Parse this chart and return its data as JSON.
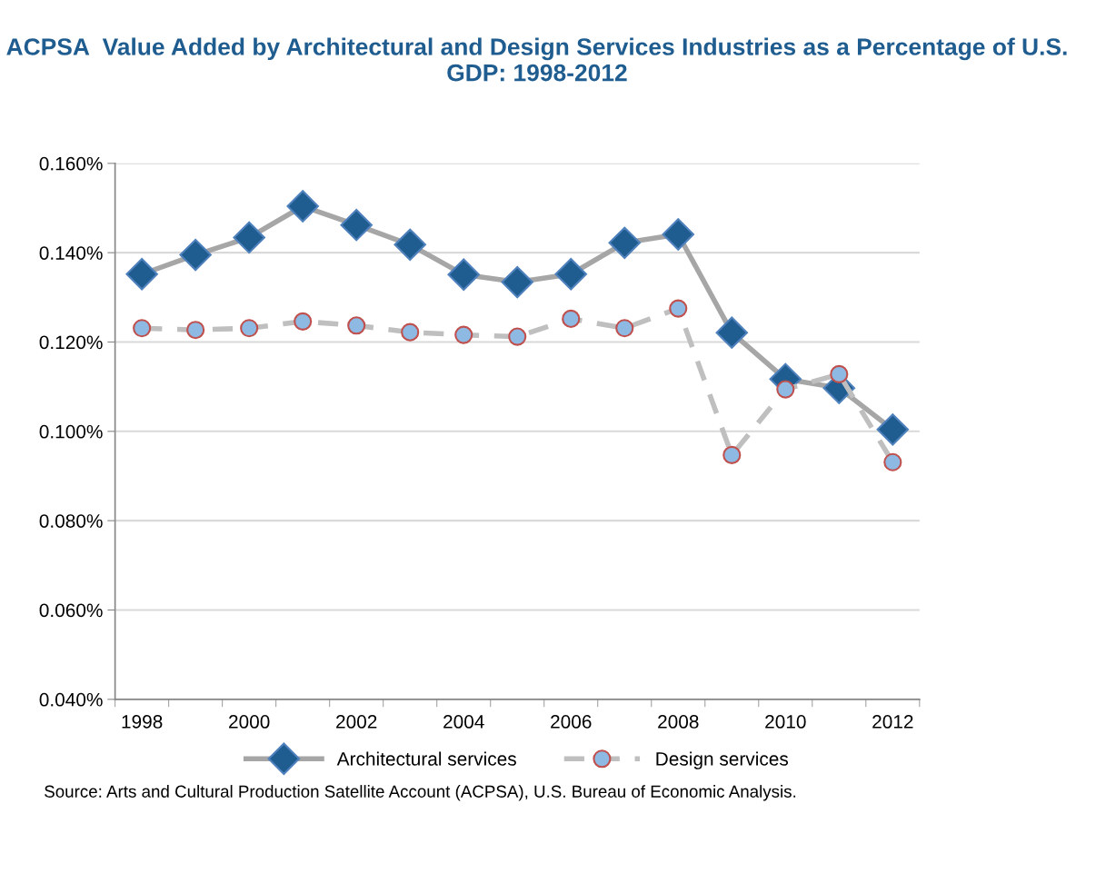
{
  "chart_data": {
    "type": "line",
    "title": "ACPSA  Value Added by Architectural and Design Services Industries as a Percentage of U.S. GDP: 1998-2012",
    "categories": [
      "1998",
      null,
      "2000",
      null,
      "2002",
      null,
      "2004",
      null,
      "2006",
      null,
      "2008",
      null,
      "2010",
      null,
      "2012"
    ],
    "series": [
      {
        "name": "Architectural services",
        "color": "#1f5c8f",
        "marker": "diamond",
        "line_style": "solid",
        "values": [
          0.1352,
          0.1395,
          0.1434,
          0.1504,
          0.1462,
          0.1418,
          0.1351,
          0.1334,
          0.1352,
          0.1422,
          0.1441,
          0.1221,
          0.1117,
          0.1097,
          0.1004
        ]
      },
      {
        "name": "Design services",
        "color": "#8db9e3",
        "marker": "circle",
        "line_style": "dashed",
        "values": [
          0.1231,
          0.1227,
          0.1231,
          0.1246,
          0.1237,
          0.1222,
          0.1216,
          0.1212,
          0.1252,
          0.1231,
          0.1275,
          0.0947,
          0.1094,
          0.1128,
          0.0931
        ]
      }
    ],
    "ylim": [
      0.04,
      0.16
    ],
    "yticks": [
      {
        "value": 0.04,
        "label": "0.040%"
      },
      {
        "value": 0.06,
        "label": "0.060%"
      },
      {
        "value": 0.08,
        "label": "0.080%"
      },
      {
        "value": 0.1,
        "label": "0.100%"
      },
      {
        "value": 0.12,
        "label": "0.120%"
      },
      {
        "value": 0.14,
        "label": "0.140%"
      },
      {
        "value": 0.16,
        "label": "0.160%"
      }
    ],
    "grid": "y",
    "legend": "bottom",
    "annotations": [
      "Source: Arts and Cultural Production Satellite Account (ACPSA), U.S. Bureau of Economic Analysis."
    ]
  }
}
